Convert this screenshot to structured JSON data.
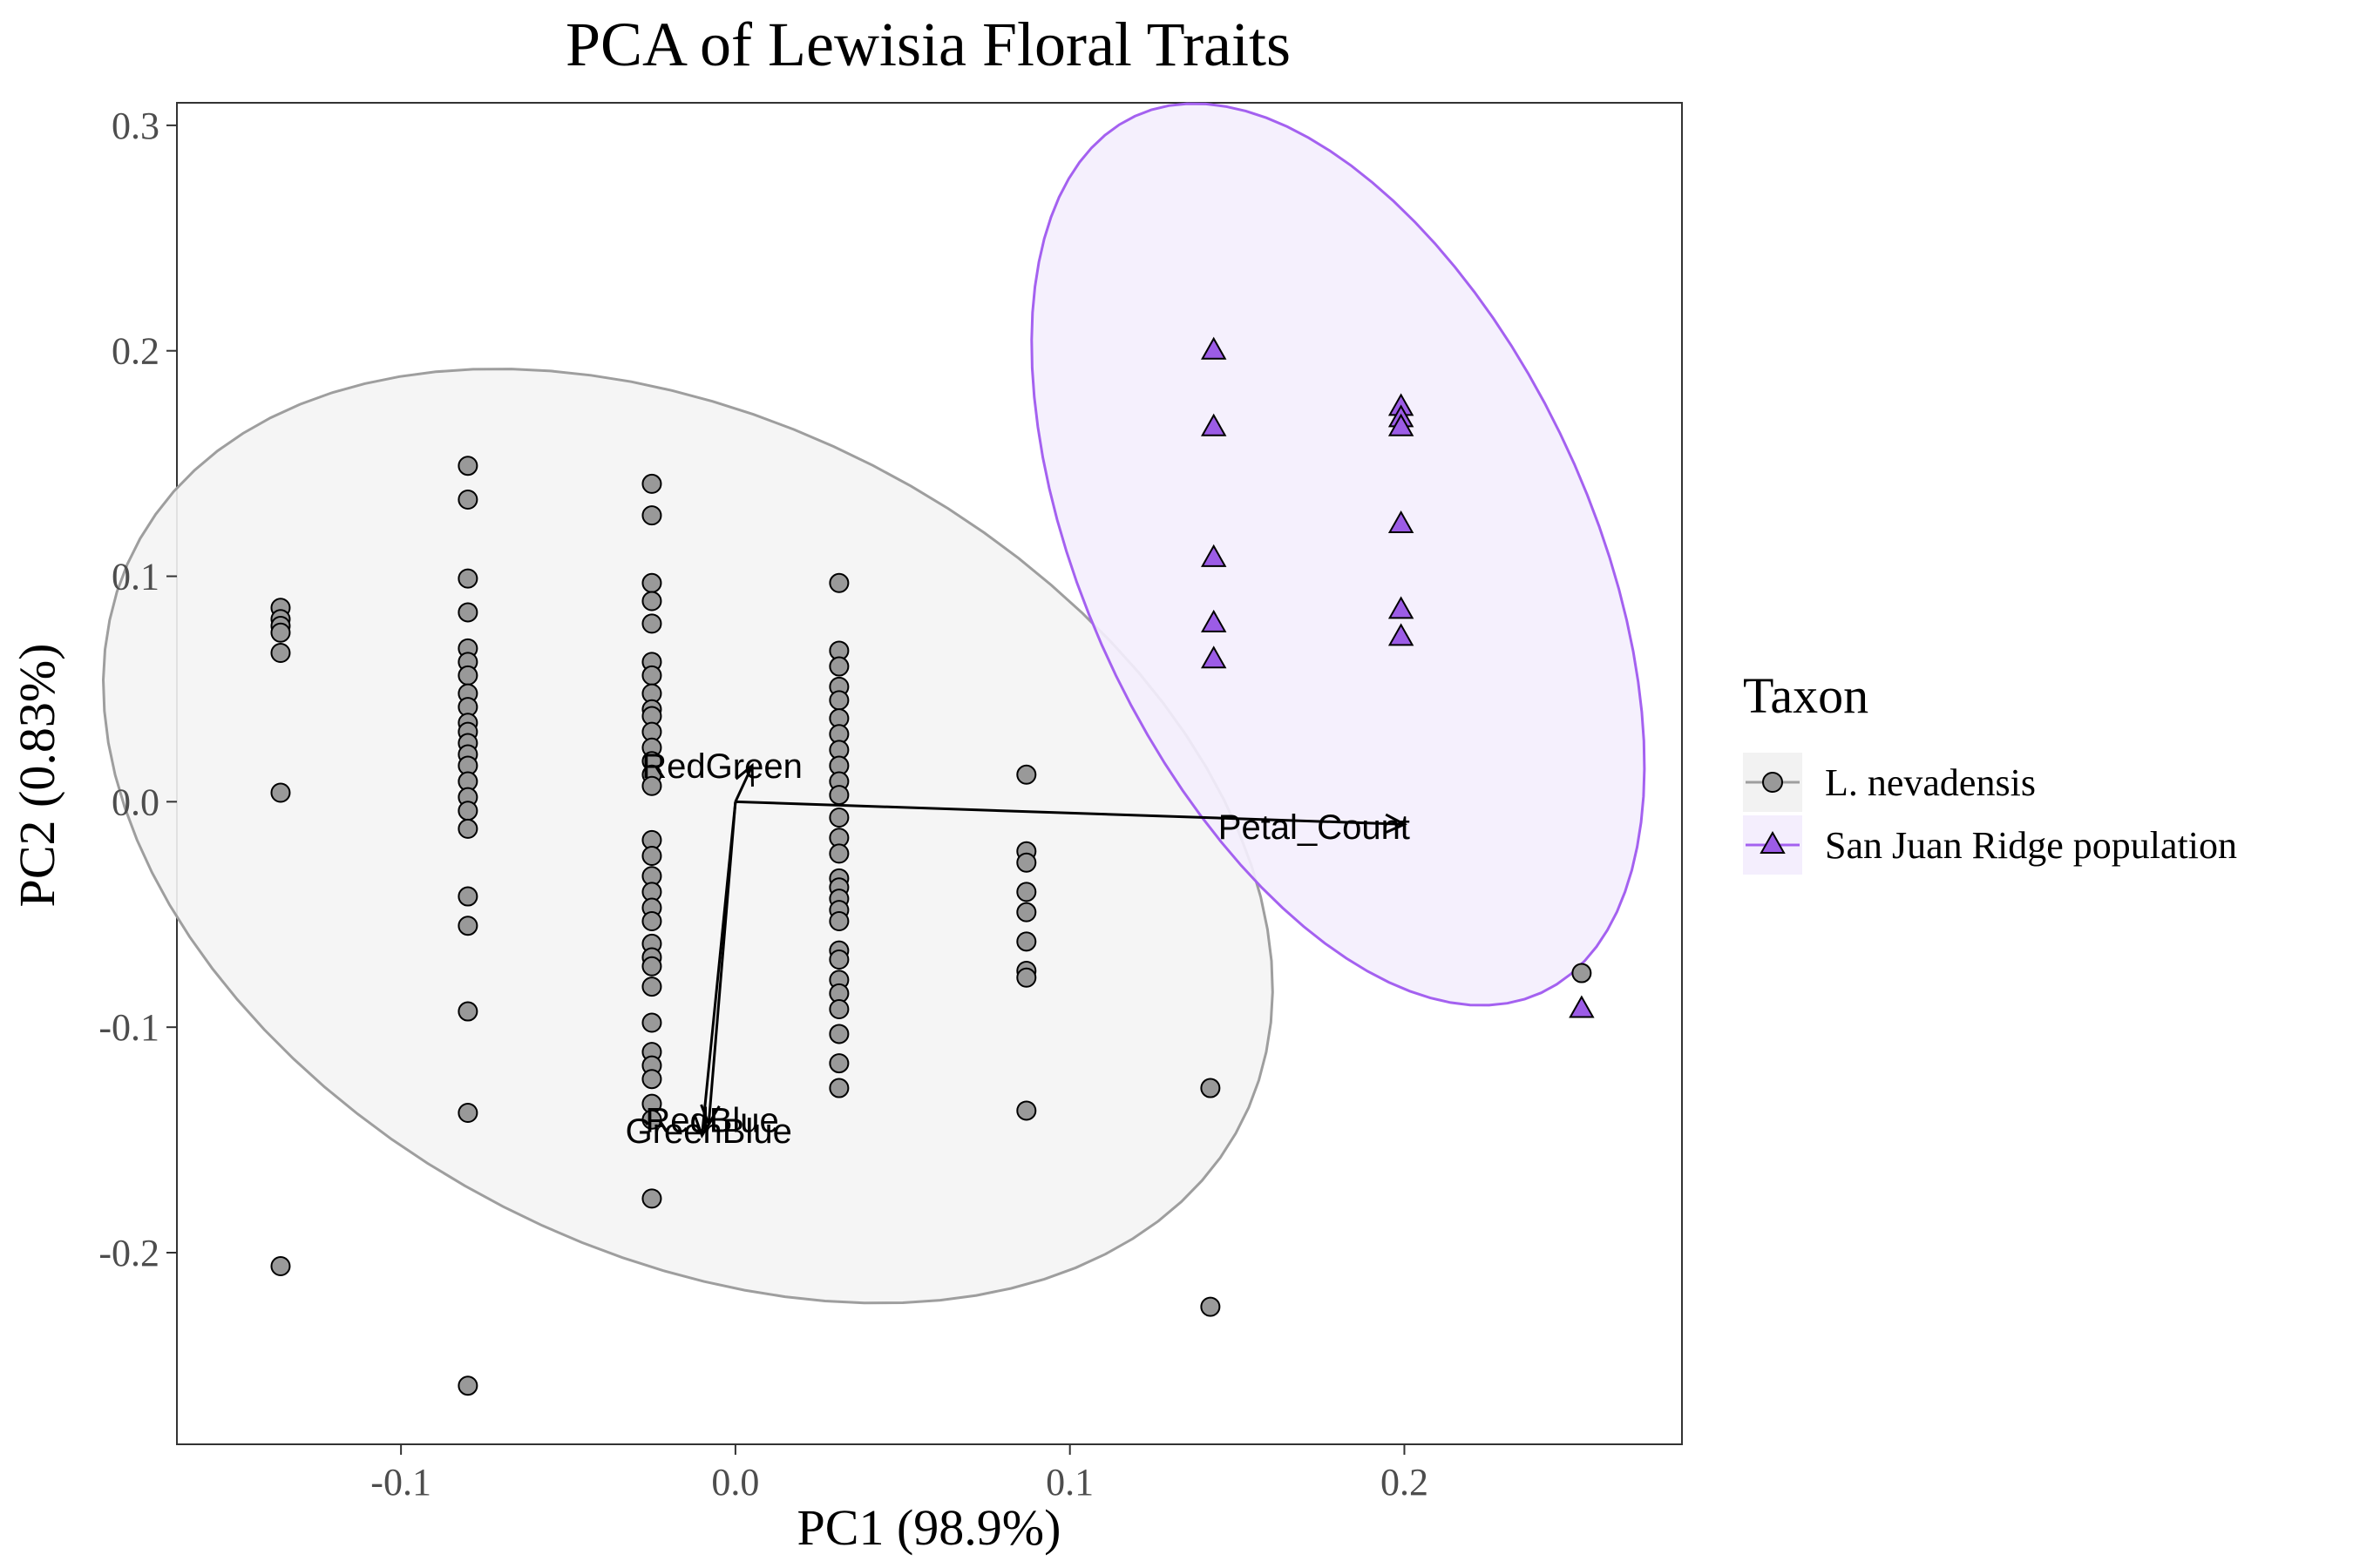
{
  "chart_data": {
    "type": "scatter",
    "title": "PCA of Lewisia Floral Traits",
    "xlabel": "PC1 (98.9%)",
    "ylabel": "PC2 (0.83%)",
    "xlim": [
      -0.167,
      0.283
    ],
    "ylim": [
      -0.285,
      0.31
    ],
    "x_ticks": [
      -0.1,
      0.0,
      0.1,
      0.2
    ],
    "x_tick_labels": [
      "-0.1",
      "0.0",
      "0.1",
      "0.2"
    ],
    "y_ticks": [
      -0.2,
      -0.1,
      0.0,
      0.1,
      0.2,
      0.3
    ],
    "y_tick_labels": [
      "-0.2",
      "-0.1",
      "0.0",
      "0.1",
      "0.2",
      "0.3"
    ],
    "grid": false,
    "legend": {
      "title": "Taxon",
      "position": "right"
    },
    "series": [
      {
        "name": "L. nevadensis",
        "marker": "circle",
        "fill": "#999999",
        "ellipse_color": "#9e9e9e",
        "ellipse_fill": "#f4f4f4",
        "points": [
          [
            -0.136,
            0.086
          ],
          [
            -0.136,
            0.081
          ],
          [
            -0.136,
            0.078
          ],
          [
            -0.136,
            0.075
          ],
          [
            -0.136,
            0.066
          ],
          [
            -0.136,
            0.004
          ],
          [
            -0.136,
            -0.206
          ],
          [
            -0.08,
            0.149
          ],
          [
            -0.08,
            0.134
          ],
          [
            -0.08,
            0.099
          ],
          [
            -0.08,
            0.084
          ],
          [
            -0.08,
            0.068
          ],
          [
            -0.08,
            0.062
          ],
          [
            -0.08,
            0.056
          ],
          [
            -0.08,
            0.048
          ],
          [
            -0.08,
            0.042
          ],
          [
            -0.08,
            0.035
          ],
          [
            -0.08,
            0.031
          ],
          [
            -0.08,
            0.026
          ],
          [
            -0.08,
            0.021
          ],
          [
            -0.08,
            0.016
          ],
          [
            -0.08,
            0.009
          ],
          [
            -0.08,
            0.002
          ],
          [
            -0.08,
            -0.004
          ],
          [
            -0.08,
            -0.012
          ],
          [
            -0.08,
            -0.042
          ],
          [
            -0.08,
            -0.055
          ],
          [
            -0.08,
            -0.093
          ],
          [
            -0.08,
            -0.138
          ],
          [
            -0.08,
            -0.259
          ],
          [
            -0.025,
            0.141
          ],
          [
            -0.025,
            0.127
          ],
          [
            -0.025,
            0.097
          ],
          [
            -0.025,
            0.089
          ],
          [
            -0.025,
            0.079
          ],
          [
            -0.025,
            0.062
          ],
          [
            -0.025,
            0.056
          ],
          [
            -0.025,
            0.048
          ],
          [
            -0.025,
            0.041
          ],
          [
            -0.025,
            0.038
          ],
          [
            -0.025,
            0.031
          ],
          [
            -0.025,
            0.024
          ],
          [
            -0.025,
            0.018
          ],
          [
            -0.025,
            0.012
          ],
          [
            -0.025,
            0.007
          ],
          [
            -0.025,
            -0.017
          ],
          [
            -0.025,
            -0.024
          ],
          [
            -0.025,
            -0.033
          ],
          [
            -0.025,
            -0.04
          ],
          [
            -0.025,
            -0.047
          ],
          [
            -0.025,
            -0.053
          ],
          [
            -0.025,
            -0.063
          ],
          [
            -0.025,
            -0.069
          ],
          [
            -0.025,
            -0.073
          ],
          [
            -0.025,
            -0.082
          ],
          [
            -0.025,
            -0.098
          ],
          [
            -0.025,
            -0.111
          ],
          [
            -0.025,
            -0.117
          ],
          [
            -0.025,
            -0.123
          ],
          [
            -0.025,
            -0.134
          ],
          [
            -0.025,
            -0.141
          ],
          [
            -0.025,
            -0.176
          ],
          [
            0.031,
            0.097
          ],
          [
            0.031,
            0.067
          ],
          [
            0.031,
            0.06
          ],
          [
            0.031,
            0.051
          ],
          [
            0.031,
            0.045
          ],
          [
            0.031,
            0.037
          ],
          [
            0.031,
            0.03
          ],
          [
            0.031,
            0.023
          ],
          [
            0.031,
            0.016
          ],
          [
            0.031,
            0.009
          ],
          [
            0.031,
            0.003
          ],
          [
            0.031,
            -0.007
          ],
          [
            0.031,
            -0.016
          ],
          [
            0.031,
            -0.023
          ],
          [
            0.031,
            -0.034
          ],
          [
            0.031,
            -0.038
          ],
          [
            0.031,
            -0.043
          ],
          [
            0.031,
            -0.048
          ],
          [
            0.031,
            -0.053
          ],
          [
            0.031,
            -0.066
          ],
          [
            0.031,
            -0.07
          ],
          [
            0.031,
            -0.079
          ],
          [
            0.031,
            -0.085
          ],
          [
            0.031,
            -0.092
          ],
          [
            0.031,
            -0.103
          ],
          [
            0.031,
            -0.116
          ],
          [
            0.031,
            -0.127
          ],
          [
            0.087,
            0.012
          ],
          [
            0.087,
            -0.022
          ],
          [
            0.087,
            -0.027
          ],
          [
            0.087,
            -0.04
          ],
          [
            0.087,
            -0.049
          ],
          [
            0.087,
            -0.062
          ],
          [
            0.087,
            -0.075
          ],
          [
            0.087,
            -0.078
          ],
          [
            0.087,
            -0.137
          ],
          [
            0.142,
            -0.127
          ],
          [
            0.142,
            -0.224
          ],
          [
            0.253,
            -0.076
          ]
        ]
      },
      {
        "name": "San Juan Ridge population",
        "marker": "triangle",
        "fill": "#9c5ce6",
        "ellipse_color": "#a461f0",
        "ellipse_fill": "#f4eefd",
        "points": [
          [
            0.143,
            0.2
          ],
          [
            0.143,
            0.166
          ],
          [
            0.143,
            0.108
          ],
          [
            0.143,
            0.079
          ],
          [
            0.143,
            0.063
          ],
          [
            0.199,
            0.175
          ],
          [
            0.199,
            0.17
          ],
          [
            0.199,
            0.166
          ],
          [
            0.199,
            0.123
          ],
          [
            0.199,
            0.085
          ],
          [
            0.199,
            0.073
          ],
          [
            0.253,
            -0.092
          ]
        ]
      }
    ],
    "loadings": [
      {
        "label": "Petal_Count",
        "x": 0.2,
        "y": -0.01,
        "label_x": 0.173,
        "label_y": -0.011
      },
      {
        "label": "RedGreen",
        "x": 0.005,
        "y": 0.016,
        "label_x": -0.004,
        "label_y": 0.016
      },
      {
        "label": "RedBlue",
        "x": -0.008,
        "y": -0.143,
        "label_x": -0.007,
        "label_y": -0.141
      },
      {
        "label": "GreenBlue",
        "x": -0.01,
        "y": -0.148,
        "label_x": -0.008,
        "label_y": -0.146
      }
    ]
  }
}
